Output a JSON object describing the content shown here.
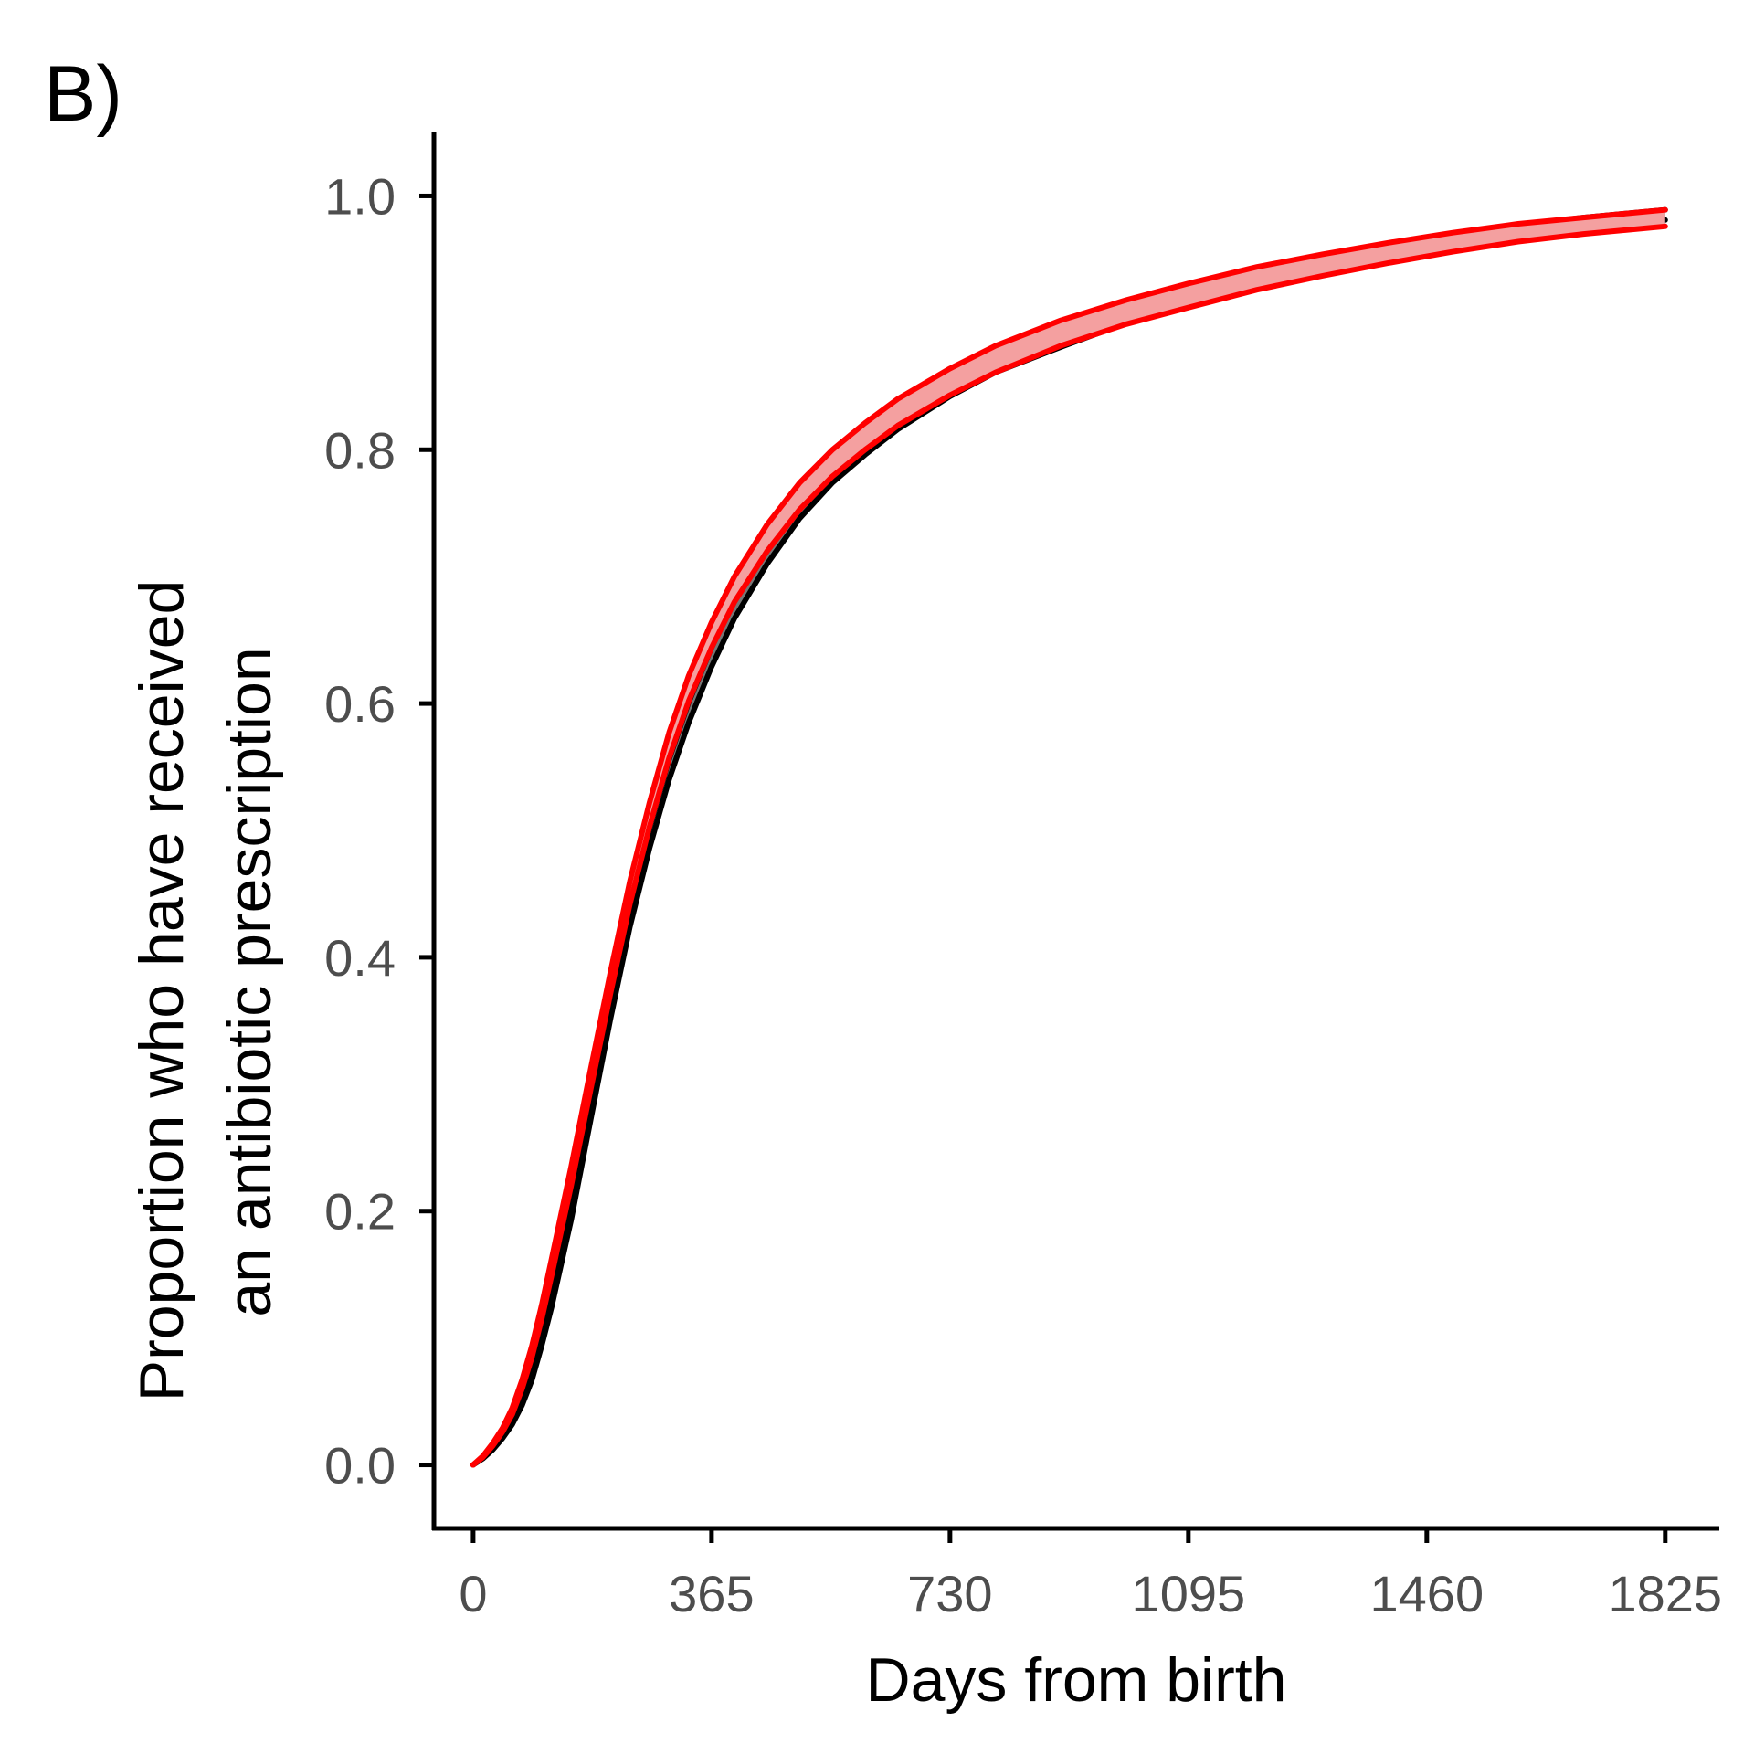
{
  "panel_label": "B)",
  "chart_data": {
    "type": "line",
    "title": "",
    "xlabel": "Days from birth",
    "ylabel_lines": [
      "Proportion who have received",
      "an antibiotic prescription"
    ],
    "xlim": [
      -60,
      1905
    ],
    "ylim": [
      -0.05,
      1.05
    ],
    "x_ticks": [
      0,
      365,
      730,
      1095,
      1460,
      1825
    ],
    "x_tick_labels": [
      "0",
      "365",
      "730",
      "1095",
      "1460",
      "1825"
    ],
    "y_ticks": [
      0.0,
      0.2,
      0.4,
      0.6,
      0.8,
      1.0
    ],
    "y_tick_labels": [
      "0.0",
      "0.2",
      "0.4",
      "0.6",
      "0.8",
      "1.0"
    ],
    "grid": false,
    "legend": "none",
    "series": [
      {
        "color": "#000000",
        "band_fill": "#777777",
        "x": [
          0,
          15,
          30,
          45,
          60,
          75,
          90,
          105,
          120,
          150,
          180,
          210,
          240,
          270,
          300,
          330,
          365,
          400,
          450,
          500,
          550,
          600,
          650,
          730,
          800,
          900,
          1000,
          1095,
          1200,
          1300,
          1400,
          1500,
          1600,
          1700,
          1825
        ],
        "upper": [
          0.0,
          0.006,
          0.014,
          0.024,
          0.036,
          0.052,
          0.074,
          0.102,
          0.134,
          0.205,
          0.285,
          0.366,
          0.44,
          0.502,
          0.556,
          0.601,
          0.644,
          0.682,
          0.725,
          0.76,
          0.788,
          0.81,
          0.83,
          0.855,
          0.873,
          0.893,
          0.911,
          0.925,
          0.939,
          0.95,
          0.96,
          0.969,
          0.977,
          0.983,
          0.989
        ],
        "lower": [
          0.0,
          0.005,
          0.012,
          0.021,
          0.032,
          0.047,
          0.067,
          0.094,
          0.124,
          0.193,
          0.272,
          0.351,
          0.424,
          0.486,
          0.54,
          0.585,
          0.629,
          0.667,
          0.71,
          0.746,
          0.774,
          0.796,
          0.816,
          0.842,
          0.861,
          0.881,
          0.9,
          0.914,
          0.928,
          0.94,
          0.951,
          0.96,
          0.968,
          0.975,
          0.981
        ]
      },
      {
        "color": "#ff0000",
        "band_fill": "#f4a0a0",
        "x": [
          0,
          15,
          30,
          45,
          60,
          75,
          90,
          105,
          120,
          150,
          180,
          210,
          240,
          270,
          300,
          330,
          365,
          400,
          450,
          500,
          550,
          600,
          650,
          730,
          800,
          900,
          1000,
          1095,
          1200,
          1300,
          1400,
          1500,
          1600,
          1700,
          1825
        ],
        "upper": [
          0.0,
          0.007,
          0.017,
          0.029,
          0.045,
          0.067,
          0.094,
          0.126,
          0.162,
          0.235,
          0.312,
          0.388,
          0.46,
          0.522,
          0.577,
          0.622,
          0.664,
          0.7,
          0.741,
          0.774,
          0.8,
          0.821,
          0.84,
          0.864,
          0.882,
          0.902,
          0.918,
          0.931,
          0.944,
          0.954,
          0.963,
          0.971,
          0.978,
          0.983,
          0.989
        ],
        "lower": [
          0.0,
          0.006,
          0.015,
          0.026,
          0.04,
          0.06,
          0.085,
          0.115,
          0.149,
          0.22,
          0.296,
          0.371,
          0.442,
          0.503,
          0.557,
          0.602,
          0.644,
          0.68,
          0.72,
          0.753,
          0.779,
          0.8,
          0.819,
          0.843,
          0.861,
          0.882,
          0.899,
          0.912,
          0.926,
          0.937,
          0.947,
          0.956,
          0.964,
          0.97,
          0.976
        ]
      }
    ]
  }
}
